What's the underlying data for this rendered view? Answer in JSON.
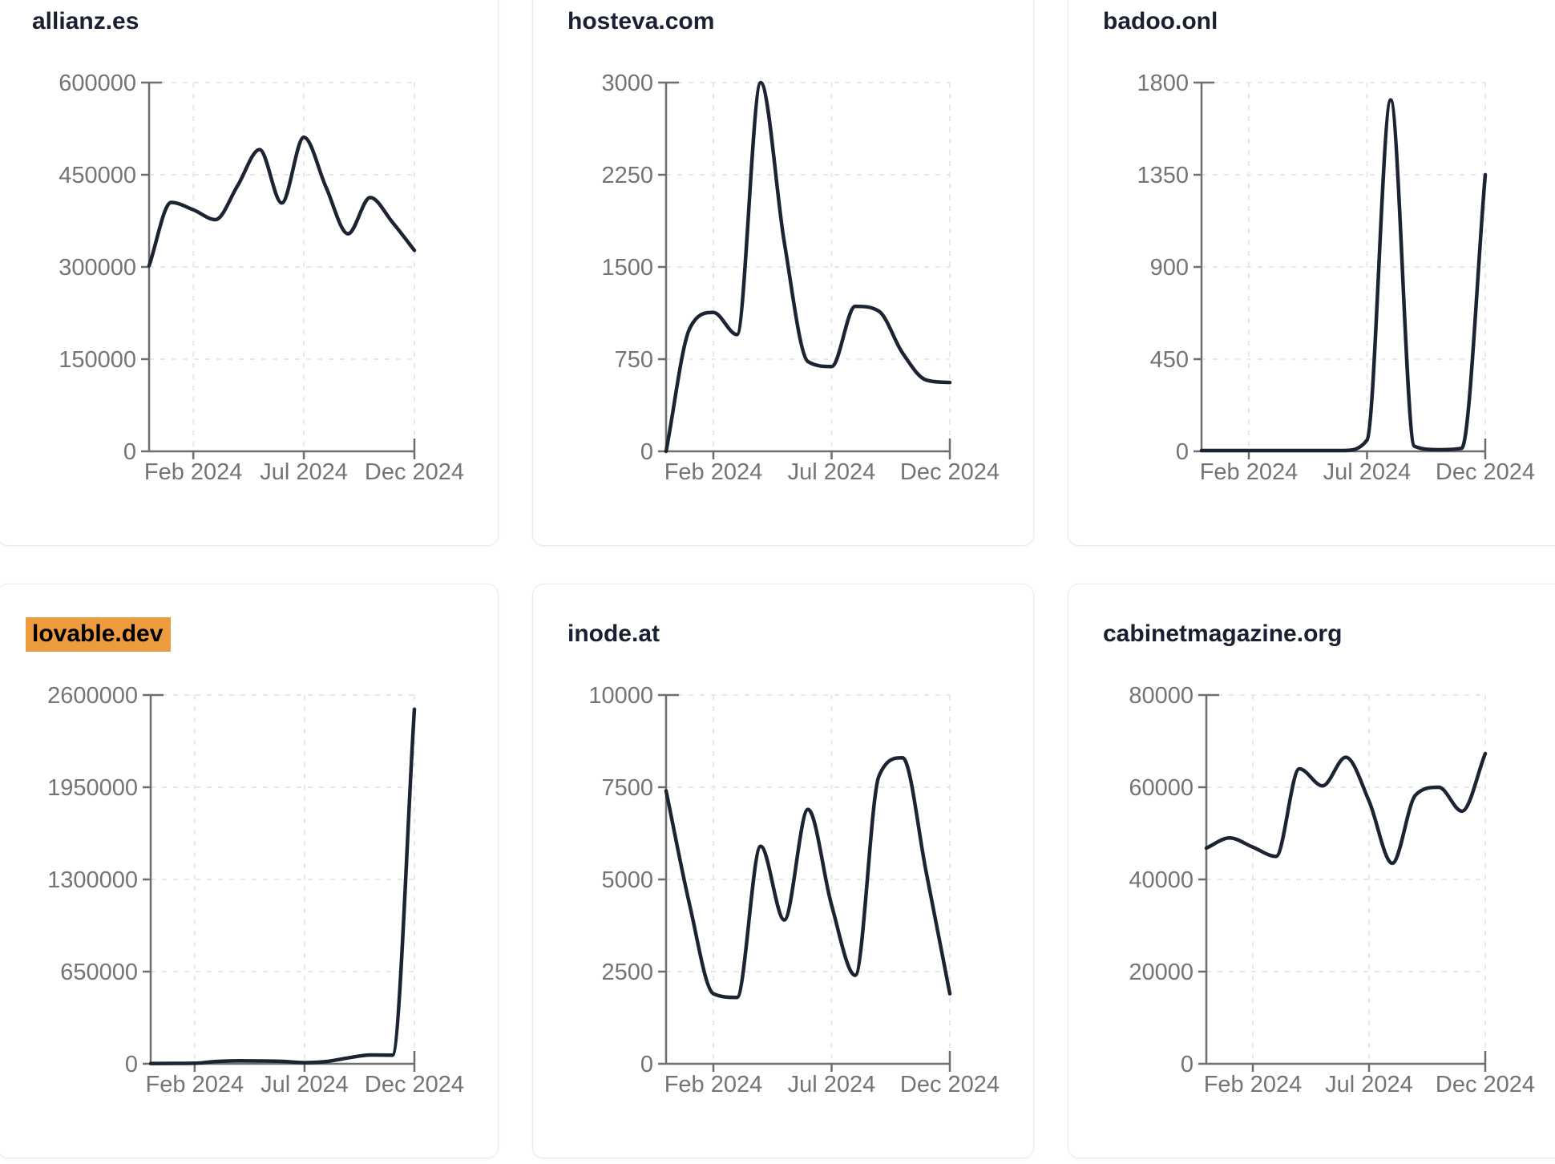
{
  "page": {
    "background": "#FFFFFF",
    "description_labels": {
      "x_axis_ticks": [
        "Feb 2024",
        "Jul 2024",
        "Dec 2024"
      ]
    }
  },
  "style": {
    "line_color": "#1C2333",
    "axis_color": "#6E6E6E",
    "tick_label_color": "#747474",
    "grid_color": "#E8E8E8",
    "card_border_color": "#E6EAF1",
    "title_color": "#192031",
    "highlight_background": "#EC9B3E",
    "highlight_text_color": "#000000"
  },
  "chart_data": [
    {
      "type": "line",
      "title": "allianz.es",
      "title_highlighted": false,
      "x": [
        "Dec 2023",
        "Jan 2024",
        "Feb 2024",
        "Mar 2024",
        "Apr 2024",
        "May 2024",
        "Jun 2024",
        "Jul 2024",
        "Aug 2024",
        "Sep 2024",
        "Oct 2024",
        "Nov 2024",
        "Dec 2024"
      ],
      "values": [
        302000,
        405000,
        393000,
        377000,
        432000,
        491000,
        404000,
        511000,
        430000,
        354000,
        413000,
        373000,
        327000
      ],
      "ylim": [
        0,
        600000
      ],
      "y_ticks": [
        0,
        150000,
        300000,
        450000,
        600000
      ],
      "y_tick_labels": [
        "0",
        "150000",
        "300000",
        "450000",
        "600000"
      ],
      "x_tick_labels": [
        "Feb 2024",
        "Jul 2024",
        "Dec 2024"
      ],
      "x_tick_month_index": [
        2,
        7,
        12
      ],
      "grid": "dashed",
      "legend": "none"
    },
    {
      "type": "line",
      "title": "hosteva.com",
      "title_highlighted": false,
      "x": [
        "Dec 2023",
        "Jan 2024",
        "Feb 2024",
        "Mar 2024",
        "Apr 2024",
        "May 2024",
        "Jun 2024",
        "Jul 2024",
        "Aug 2024",
        "Sep 2024",
        "Oct 2024",
        "Nov 2024",
        "Dec 2024"
      ],
      "values": [
        0,
        1000,
        1130,
        950,
        3000,
        1700,
        730,
        690,
        1180,
        1140,
        800,
        580,
        560
      ],
      "ylim": [
        0,
        3000
      ],
      "y_ticks": [
        0,
        750,
        1500,
        2250,
        3000
      ],
      "y_tick_labels": [
        "0",
        "750",
        "1500",
        "2250",
        "3000"
      ],
      "x_tick_labels": [
        "Feb 2024",
        "Jul 2024",
        "Dec 2024"
      ],
      "x_tick_month_index": [
        2,
        7,
        12
      ],
      "grid": "dashed",
      "legend": "none"
    },
    {
      "type": "line",
      "title": "badoo.onl",
      "title_highlighted": false,
      "x": [
        "Dec 2023",
        "Jan 2024",
        "Feb 2024",
        "Mar 2024",
        "Apr 2024",
        "May 2024",
        "Jun 2024",
        "Jul 2024",
        "Aug 2024",
        "Sep 2024",
        "Oct 2024",
        "Nov 2024",
        "Dec 2024"
      ],
      "values": [
        4,
        4,
        4,
        4,
        4,
        4,
        4,
        55,
        1715,
        25,
        8,
        15,
        1350
      ],
      "ylim": [
        0,
        1800
      ],
      "y_ticks": [
        0,
        450,
        900,
        1350,
        1800
      ],
      "y_tick_labels": [
        "0",
        "450",
        "900",
        "1350",
        "1800"
      ],
      "x_tick_labels": [
        "Feb 2024",
        "Jul 2024",
        "Dec 2024"
      ],
      "x_tick_month_index": [
        2,
        7,
        12
      ],
      "grid": "dashed",
      "legend": "none"
    },
    {
      "type": "line",
      "title": "lovable.dev",
      "title_highlighted": true,
      "x": [
        "Dec 2023",
        "Jan 2024",
        "Feb 2024",
        "Mar 2024",
        "Apr 2024",
        "May 2024",
        "Jun 2024",
        "Jul 2024",
        "Aug 2024",
        "Sep 2024",
        "Oct 2024",
        "Nov 2024",
        "Dec 2024"
      ],
      "values": [
        2000,
        2500,
        4000,
        16000,
        21000,
        20000,
        17000,
        8000,
        16000,
        42000,
        62000,
        61000,
        2500000
      ],
      "ylim": [
        0,
        2600000
      ],
      "y_ticks": [
        0,
        650000,
        1300000,
        1950000,
        2600000
      ],
      "y_tick_labels": [
        "0",
        "650000",
        "1300000",
        "1950000",
        "2600000"
      ],
      "x_tick_labels": [
        "Feb 2024",
        "Jul 2024",
        "Dec 2024"
      ],
      "x_tick_month_index": [
        2,
        7,
        12
      ],
      "grid": "dashed",
      "legend": "none"
    },
    {
      "type": "line",
      "title": "inode.at",
      "title_highlighted": false,
      "x": [
        "Dec 2023",
        "Jan 2024",
        "Feb 2024",
        "Mar 2024",
        "Apr 2024",
        "May 2024",
        "Jun 2024",
        "Jul 2024",
        "Aug 2024",
        "Sep 2024",
        "Oct 2024",
        "Nov 2024",
        "Dec 2024"
      ],
      "values": [
        7400,
        4300,
        1900,
        1800,
        5900,
        3900,
        6900,
        4300,
        2400,
        7800,
        8300,
        5200,
        1900
      ],
      "ylim": [
        0,
        10000
      ],
      "y_ticks": [
        0,
        2500,
        5000,
        7500,
        10000
      ],
      "y_tick_labels": [
        "0",
        "2500",
        "5000",
        "7500",
        "10000"
      ],
      "x_tick_labels": [
        "Feb 2024",
        "Jul 2024",
        "Dec 2024"
      ],
      "x_tick_month_index": [
        2,
        7,
        12
      ],
      "grid": "dashed",
      "legend": "none"
    },
    {
      "type": "line",
      "title": "cabinetmagazine.org",
      "title_highlighted": false,
      "x": [
        "Dec 2023",
        "Jan 2024",
        "Feb 2024",
        "Mar 2024",
        "Apr 2024",
        "May 2024",
        "Jun 2024",
        "Jul 2024",
        "Aug 2024",
        "Sep 2024",
        "Oct 2024",
        "Nov 2024",
        "Dec 2024"
      ],
      "values": [
        46800,
        49000,
        47000,
        45000,
        64000,
        60300,
        66500,
        57000,
        43500,
        58300,
        60000,
        54800,
        67300
      ],
      "ylim": [
        0,
        80000
      ],
      "y_ticks": [
        0,
        20000,
        40000,
        60000,
        80000
      ],
      "y_tick_labels": [
        "0",
        "20000",
        "40000",
        "60000",
        "80000"
      ],
      "x_tick_labels": [
        "Feb 2024",
        "Jul 2024",
        "Dec 2024"
      ],
      "x_tick_month_index": [
        2,
        7,
        12
      ],
      "grid": "dashed",
      "legend": "none"
    }
  ]
}
